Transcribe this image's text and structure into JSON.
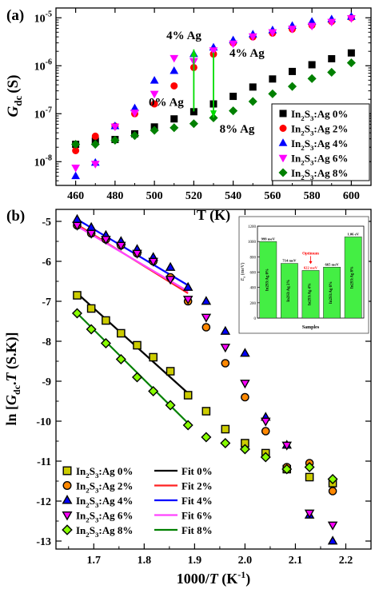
{
  "chart_data": [
    {
      "type": "scatter",
      "panel_label": "(a)",
      "xlabel": "T (K)",
      "ylabel_main": "G",
      "ylabel_sub": "dc",
      "ylabel_unit": "(S)",
      "yscale": "log",
      "xlim": [
        450,
        610
      ],
      "ylim": [
        3.2e-09,
        1.6e-05
      ],
      "xticks": [
        "460",
        "480",
        "500",
        "520",
        "540",
        "560",
        "580",
        "600"
      ],
      "xtick_values": [
        460,
        480,
        500,
        520,
        540,
        560,
        580,
        600
      ],
      "yticks": [
        {
          "base": "10",
          "exp": "-8",
          "value": 1e-08
        },
        {
          "base": "10",
          "exp": "-7",
          "value": 1e-07
        },
        {
          "base": "10",
          "exp": "-6",
          "value": 1e-06
        },
        {
          "base": "10",
          "exp": "-5",
          "value": 1e-05
        }
      ],
      "legend_position": "bottom-right",
      "series": [
        {
          "name": "In2S3:Ag 0%",
          "pre": "In",
          "s1": "2",
          "mid": "S",
          "s2": "3",
          "post": ":Ag 0%",
          "color": "#000000",
          "marker": "square",
          "x": [
            460,
            470,
            480,
            490,
            500,
            510,
            520,
            530,
            540,
            550,
            560,
            570,
            580,
            590,
            600
          ],
          "y": [
            2.3e-08,
            2.7e-08,
            2.9e-08,
            3.8e-08,
            5.3e-08,
            7.8e-08,
            1.1e-07,
            1.6e-07,
            2.3e-07,
            3.6e-07,
            5.3e-07,
            7.6e-07,
            1.05e-06,
            1.4e-06,
            1.85e-06
          ]
        },
        {
          "name": "In2S3:Ag 2%",
          "pre": "In",
          "s1": "2",
          "mid": "S",
          "s2": "3",
          "post": ":Ag 2%",
          "color": "#ff0000",
          "marker": "circle",
          "x": [
            460,
            470,
            480,
            490,
            500,
            510,
            520,
            530,
            540,
            550,
            560,
            570,
            580,
            590,
            600
          ],
          "y": [
            1.7e-08,
            3.4e-08,
            5.5e-08,
            1e-07,
            1.6e-07,
            3.8e-07,
            9.2e-07,
            1.75e-06,
            3e-06,
            4e-06,
            4.8e-06,
            5.8e-06,
            7e-06,
            8.4e-06,
            1e-05
          ]
        },
        {
          "name": "In2S3:Ag 4%",
          "pre": "In",
          "s1": "2",
          "mid": "S",
          "s2": "3",
          "post": ":Ag 4%",
          "color": "#0000ff",
          "marker": "triangle",
          "x": [
            460,
            470,
            480,
            490,
            500,
            510,
            520,
            530,
            540,
            550,
            560,
            570,
            580,
            590,
            600
          ],
          "y": [
            5e-09,
            9.5e-09,
            5.5e-08,
            1.3e-07,
            4.9e-07,
            7.8e-07,
            1.75e-06,
            2.4e-06,
            3.4e-06,
            4.5e-06,
            5.5e-06,
            6.8e-06,
            8.3e-06,
            9.3e-06,
            1.05e-05
          ]
        },
        {
          "name": "In2S3:Ag 6%",
          "pre": "In",
          "s1": "2",
          "mid": "S",
          "s2": "3",
          "post": ":Ag 6%",
          "color": "#ff00ff",
          "marker": "inverted-triangle",
          "x": [
            460,
            470,
            480,
            490,
            500,
            510,
            520,
            530,
            540,
            550,
            560,
            570,
            580,
            590,
            600
          ],
          "y": [
            7.5e-09,
            9e-09,
            5.4e-08,
            1.05e-07,
            2.6e-07,
            1.45e-06,
            1.25e-06,
            2.1e-06,
            2.9e-06,
            4.1e-06,
            5e-06,
            5.9e-06,
            6.8e-06,
            8.2e-06,
            9.8e-06
          ]
        },
        {
          "name": "In2S3:Ag 8%",
          "pre": "In",
          "s1": "2",
          "mid": "S",
          "s2": "3",
          "post": ":Ag 8%",
          "color": "#008000",
          "marker": "diamond",
          "x": [
            460,
            470,
            480,
            490,
            500,
            510,
            520,
            530,
            540,
            550,
            560,
            570,
            580,
            590,
            600
          ],
          "y": [
            2.3e-08,
            2.3e-08,
            2.8e-08,
            3.5e-08,
            4.5e-08,
            5.1e-08,
            6.2e-08,
            8.2e-08,
            1.15e-07,
            1.8e-07,
            2.6e-07,
            3.7e-07,
            5.4e-07,
            7.3e-07,
            1.15e-06
          ]
        }
      ],
      "annotations": [
        {
          "text": "4% Ag",
          "x": 515,
          "y": 3.6e-06,
          "anchor": "middle"
        },
        {
          "text": "4% Ag",
          "x": 547,
          "y": 1.55e-06,
          "anchor": "middle"
        },
        {
          "text": "0% Ag",
          "x": 506,
          "y": 1.45e-07,
          "anchor": "middle"
        },
        {
          "text": "8% Ag",
          "x": 542,
          "y": 4e-08,
          "anchor": "middle"
        }
      ],
      "arrows": [
        {
          "x": 520,
          "y_from": 1.12e-07,
          "y_to": 2.2e-06,
          "color": "#00dd00"
        },
        {
          "x": 530,
          "y_from": 1.9e-06,
          "y_to": 8.3e-08,
          "color": "#00dd00"
        }
      ]
    },
    {
      "type": "scatter",
      "panel_label": "(b)",
      "xlabel_pre": "1000/",
      "xlabel_italic": "T",
      "xlabel_post": " (K",
      "xlabel_sup": "-1",
      "xlabel_end": ")",
      "ylabel_pre": "ln [",
      "ylabel_g": "G",
      "ylabel_sub": "dc",
      "ylabel_mid": ".",
      "ylabel_t": "T",
      "ylabel_end": " (S.K)]",
      "xlim": [
        1.625,
        2.25
      ],
      "ylim": [
        -13.2,
        -4.7
      ],
      "xticks": [
        "1.7",
        "1.8",
        "1.9",
        "2.0",
        "2.1",
        "2.2"
      ],
      "xtick_values": [
        1.7,
        1.8,
        1.9,
        2.0,
        2.1,
        2.2
      ],
      "yticks": [
        "-5",
        "-6",
        "-7",
        "-8",
        "-9",
        "-10",
        "-11",
        "-12",
        "-13"
      ],
      "ytick_values": [
        -5,
        -6,
        -7,
        -8,
        -9,
        -10,
        -11,
        -12,
        -13
      ],
      "legend_position": "bottom-left",
      "series": [
        {
          "name": "In2S3:Ag 0%",
          "pre": "In",
          "s1": "2",
          "mid": "S",
          "s2": "3",
          "post": ":Ag 0%",
          "color": "#cccc00",
          "marker": "square",
          "x": [
            1.667,
            1.695,
            1.724,
            1.754,
            1.786,
            1.818,
            1.852,
            1.887,
            1.923,
            1.961,
            2.0,
            2.041,
            2.083,
            2.128,
            2.174
          ],
          "y": [
            -6.85,
            -7.18,
            -7.48,
            -7.8,
            -8.1,
            -8.4,
            -8.75,
            -9.35,
            -9.75,
            -10.2,
            -10.55,
            -10.8,
            -11.2,
            -11.4,
            -11.55
          ]
        },
        {
          "name": "In2S3:Ag 2%",
          "pre": "In",
          "s1": "2",
          "mid": "S",
          "s2": "3",
          "post": ":Ag 2%",
          "color": "#ff8800",
          "marker": "circle",
          "x": [
            1.667,
            1.695,
            1.724,
            1.754,
            1.786,
            1.818,
            1.852,
            1.887,
            1.923,
            1.961,
            2.0,
            2.041,
            2.083,
            2.128,
            2.174
          ],
          "y": [
            -5.1,
            -5.3,
            -5.45,
            -5.6,
            -5.8,
            -6.0,
            -6.4,
            -7.0,
            -7.65,
            -8.55,
            -9.4,
            -10.25,
            -11.15,
            -11.05,
            -11.75
          ]
        },
        {
          "name": "In2S3:Ag 4%",
          "pre": "In",
          "s1": "2",
          "mid": "S",
          "s2": "3",
          "post": ":Ag 4%",
          "color": "#0000ff",
          "marker": "triangle",
          "x": [
            1.667,
            1.695,
            1.724,
            1.754,
            1.786,
            1.818,
            1.852,
            1.887,
            1.923,
            1.961,
            2.0,
            2.041,
            2.083,
            2.128,
            2.174
          ],
          "y": [
            -4.95,
            -5.15,
            -5.35,
            -5.5,
            -5.7,
            -5.9,
            -6.15,
            -6.65,
            -7.0,
            -7.75,
            -8.3,
            -9.9,
            -10.6,
            -12.35,
            -13.0
          ]
        },
        {
          "name": "In2S3:Ag 6%",
          "pre": "In",
          "s1": "2",
          "mid": "S",
          "s2": "3",
          "post": ":Ag 6%",
          "color": "#ff00ff",
          "marker": "inverted-triangle",
          "x": [
            1.667,
            1.695,
            1.724,
            1.754,
            1.786,
            1.818,
            1.852,
            1.887,
            1.923,
            1.961,
            2.0,
            2.041,
            2.083,
            2.128,
            2.174
          ],
          "y": [
            -5.1,
            -5.3,
            -5.45,
            -5.6,
            -5.8,
            -6.0,
            -6.45,
            -6.95,
            -7.4,
            -8.15,
            -9.05,
            -10.0,
            -10.6,
            -12.3,
            -12.6
          ]
        },
        {
          "name": "In2S3:Ag 8%",
          "pre": "In",
          "s1": "2",
          "mid": "S",
          "s2": "3",
          "post": ":Ag 8%",
          "color": "#88ff00",
          "marker": "diamond",
          "x": [
            1.667,
            1.695,
            1.724,
            1.754,
            1.786,
            1.818,
            1.852,
            1.887,
            1.923,
            1.961,
            2.0,
            2.041,
            2.083,
            2.128,
            2.174
          ],
          "y": [
            -7.3,
            -7.7,
            -8.05,
            -8.45,
            -8.9,
            -9.25,
            -9.6,
            -10.1,
            -10.4,
            -10.55,
            -10.7,
            -10.9,
            -11.2,
            -11.15,
            -11.45
          ]
        }
      ],
      "fits": [
        {
          "label": "Fit 0%",
          "color": "#000000",
          "x": [
            1.667,
            1.887
          ],
          "y": [
            -6.8,
            -9.3
          ]
        },
        {
          "label": "Fit 2%",
          "color": "#ff2222",
          "x": [
            1.667,
            1.887
          ],
          "y": [
            -5.08,
            -6.8
          ]
        },
        {
          "label": "Fit 4%",
          "color": "#0000ff",
          "x": [
            1.667,
            1.887
          ],
          "y": [
            -4.95,
            -6.6
          ]
        },
        {
          "label": "Fit 6%",
          "color": "#ff44ff",
          "x": [
            1.667,
            1.887
          ],
          "y": [
            -5.12,
            -6.75
          ]
        },
        {
          "label": "Fit 8%",
          "color": "#008000",
          "x": [
            1.667,
            1.887
          ],
          "y": [
            -7.3,
            -10.05
          ]
        }
      ],
      "inset": {
        "type": "bar",
        "xlabel": "Samples",
        "ylabel_main": "E",
        "ylabel_sub": "a",
        "ylabel_unit": " (meV)",
        "ylim": [
          0,
          1200
        ],
        "yticks": [
          "0",
          "200",
          "400",
          "600",
          "800",
          "1000",
          "1200"
        ],
        "ytick_values": [
          0,
          200,
          400,
          600,
          800,
          1000,
          1200
        ],
        "bar_color": "#44ee44",
        "arrow_color": "#ff0000",
        "optimum_label": "Optimum",
        "bars": [
          {
            "label": "In2S3:Ag 0%",
            "value": 999,
            "value_label": "999 meV"
          },
          {
            "label": "In2S3:Ag 2%",
            "value": 714,
            "value_label": "714 meV"
          },
          {
            "label": "In2S3:Ag 4%",
            "value": 622,
            "value_label": "622 meV"
          },
          {
            "label": "In2S3:Ag 6%",
            "value": 665,
            "value_label": "665 meV"
          },
          {
            "label": "In2S3:Ag 8%",
            "value": 1060,
            "value_label": "1.06 eV"
          }
        ]
      }
    }
  ]
}
